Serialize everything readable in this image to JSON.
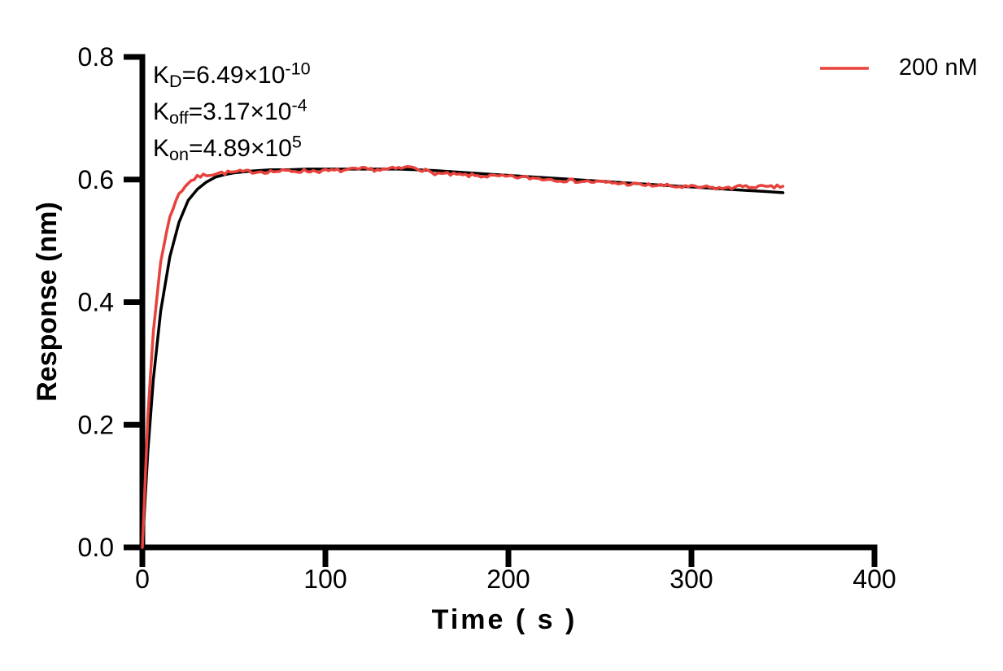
{
  "chart_data": {
    "type": "line",
    "title": "",
    "xlabel": "Time ( s )",
    "ylabel": "Response (nm)",
    "xlim": [
      0,
      400
    ],
    "ylim": [
      0,
      0.8
    ],
    "grid": false,
    "legend_position": "top-right",
    "axis_color": "#000000",
    "xticks": {
      "values": [
        0,
        100,
        200,
        300,
        400
      ],
      "labels": [
        "0",
        "100",
        "200",
        "300",
        "400"
      ]
    },
    "yticks": {
      "values": [
        0,
        0.2,
        0.4,
        0.6,
        0.8
      ],
      "labels": [
        "0.0",
        "0.2",
        "0.4",
        "0.6",
        "0.8"
      ]
    },
    "annotations": [
      {
        "base": "K",
        "sub": "D",
        "eq": "=6.49×10",
        "sup": "-10"
      },
      {
        "base": "K",
        "sub": "off",
        "eq": "=3.17×10",
        "sup": "-4"
      },
      {
        "base": "K",
        "sub": "on",
        "eq": "=4.89×10",
        "sup": "5"
      }
    ],
    "legend": [
      {
        "label": "200 nM",
        "color": "#E8423C"
      }
    ],
    "series": [
      {
        "name": "fit",
        "color": "#000000",
        "width": 3.5,
        "points": [
          [
            0,
            0
          ],
          [
            3,
            0.157
          ],
          [
            6,
            0.274
          ],
          [
            10,
            0.385
          ],
          [
            15,
            0.474
          ],
          [
            20,
            0.53
          ],
          [
            25,
            0.566
          ],
          [
            30,
            0.584
          ],
          [
            35,
            0.596
          ],
          [
            40,
            0.604
          ],
          [
            45,
            0.608
          ],
          [
            50,
            0.611
          ],
          [
            60,
            0.614
          ],
          [
            70,
            0.616
          ],
          [
            80,
            0.616
          ],
          [
            90,
            0.617
          ],
          [
            100,
            0.617
          ],
          [
            110,
            0.617
          ],
          [
            120,
            0.617
          ],
          [
            130,
            0.617
          ],
          [
            140,
            0.617
          ],
          [
            150,
            0.616
          ],
          [
            160,
            0.6146
          ],
          [
            170,
            0.6126
          ],
          [
            180,
            0.6107
          ],
          [
            190,
            0.6087
          ],
          [
            200,
            0.6068
          ],
          [
            210,
            0.6049
          ],
          [
            220,
            0.603
          ],
          [
            230,
            0.6011
          ],
          [
            240,
            0.5992
          ],
          [
            250,
            0.5973
          ],
          [
            260,
            0.5954
          ],
          [
            270,
            0.5935
          ],
          [
            280,
            0.5916
          ],
          [
            290,
            0.5897
          ],
          [
            300,
            0.5879
          ],
          [
            310,
            0.586
          ],
          [
            320,
            0.5842
          ],
          [
            330,
            0.5823
          ],
          [
            340,
            0.5805
          ],
          [
            350,
            0.5786
          ]
        ]
      },
      {
        "name": "200 nM",
        "color": "#E8423C",
        "width": 3.5,
        "noise": {
          "amplitude": 0.003,
          "seed": 7,
          "step": 1.6,
          "ramp_in": 25
        },
        "points": [
          [
            0,
            0
          ],
          [
            3,
            0.214
          ],
          [
            6,
            0.352
          ],
          [
            10,
            0.466
          ],
          [
            15,
            0.54
          ],
          [
            20,
            0.577
          ],
          [
            25,
            0.595
          ],
          [
            30,
            0.604
          ],
          [
            35,
            0.608
          ],
          [
            40,
            0.61
          ],
          [
            45,
            0.611
          ],
          [
            50,
            0.612
          ],
          [
            60,
            0.613
          ],
          [
            70,
            0.613
          ],
          [
            80,
            0.614
          ],
          [
            90,
            0.614
          ],
          [
            100,
            0.614
          ],
          [
            110,
            0.615
          ],
          [
            120,
            0.617
          ],
          [
            130,
            0.616
          ],
          [
            140,
            0.618
          ],
          [
            148,
            0.621
          ],
          [
            153,
            0.616
          ],
          [
            158,
            0.611
          ],
          [
            165,
            0.609
          ],
          [
            175,
            0.607
          ],
          [
            185,
            0.606
          ],
          [
            195,
            0.605
          ],
          [
            205,
            0.604
          ],
          [
            215,
            0.602
          ],
          [
            225,
            0.6
          ],
          [
            235,
            0.598
          ],
          [
            245,
            0.5965
          ],
          [
            255,
            0.595
          ],
          [
            265,
            0.593
          ],
          [
            275,
            0.591
          ],
          [
            285,
            0.59
          ],
          [
            295,
            0.588
          ],
          [
            305,
            0.5875
          ],
          [
            315,
            0.586
          ],
          [
            322,
            0.5855
          ],
          [
            325,
            0.592
          ],
          [
            328,
            0.587
          ],
          [
            335,
            0.589
          ],
          [
            342,
            0.587
          ],
          [
            350,
            0.589
          ]
        ]
      }
    ]
  }
}
